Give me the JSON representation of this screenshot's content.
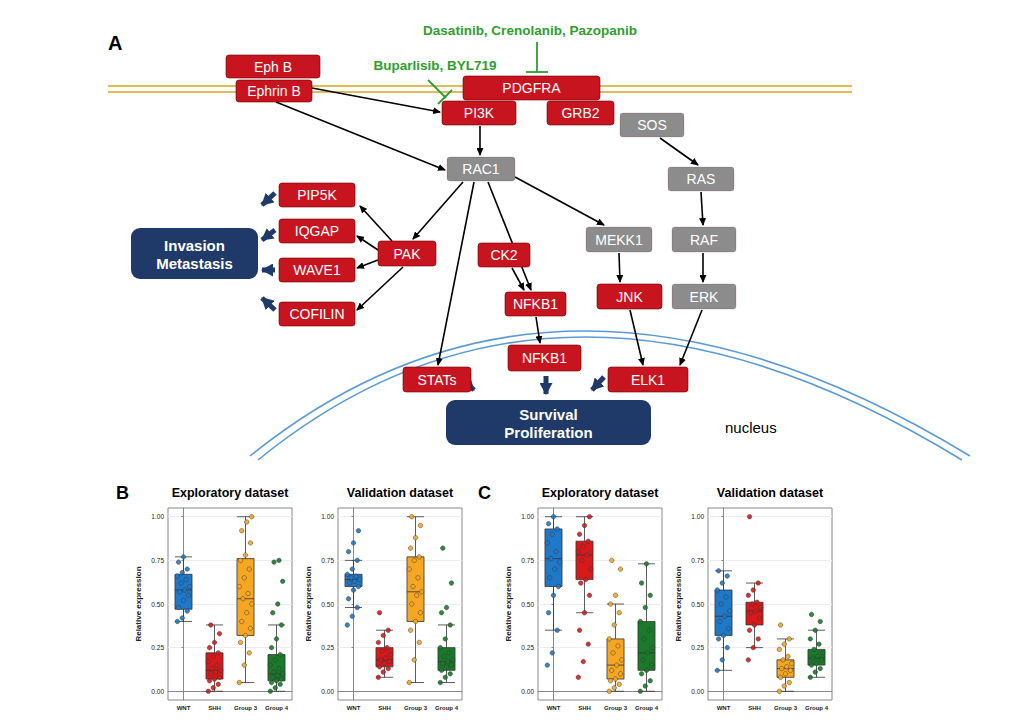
{
  "panel_labels": [
    "A",
    "B",
    "C"
  ],
  "diagram": {
    "colors": {
      "protein": "#c8141e",
      "other": "#8c8c8c",
      "outcome": "#1f3a68",
      "inhibitor": "#2e9e2e",
      "membrane": "#d9a520",
      "nucleus": "#5b9bd5"
    },
    "nodes": [
      {
        "label": "Eph B",
        "kind": "protein"
      },
      {
        "label": "Ephrin B",
        "kind": "protein"
      },
      {
        "label": "PDGFRA",
        "kind": "protein"
      },
      {
        "label": "PI3K",
        "kind": "protein"
      },
      {
        "label": "GRB2",
        "kind": "protein"
      },
      {
        "label": "SOS",
        "kind": "other"
      },
      {
        "label": "RAC1",
        "kind": "other"
      },
      {
        "label": "RAS",
        "kind": "other"
      },
      {
        "label": "PIP5K",
        "kind": "protein"
      },
      {
        "label": "IQGAP",
        "kind": "protein"
      },
      {
        "label": "PAK",
        "kind": "protein"
      },
      {
        "label": "WAVE1",
        "kind": "protein"
      },
      {
        "label": "COFILIN",
        "kind": "protein"
      },
      {
        "label": "CK2",
        "kind": "protein"
      },
      {
        "label": "MEKK1",
        "kind": "other"
      },
      {
        "label": "RAF",
        "kind": "other"
      },
      {
        "label": "NFKB1",
        "kind": "protein"
      },
      {
        "label": "JNK",
        "kind": "protein"
      },
      {
        "label": "ERK",
        "kind": "other"
      },
      {
        "label": "NFKB1",
        "kind": "protein"
      },
      {
        "label": "STATs",
        "kind": "protein"
      },
      {
        "label": "ELK1",
        "kind": "protein"
      }
    ],
    "outcomes": [
      [
        "Invasion",
        "Metastasis"
      ],
      [
        "Survival",
        "Proliferation"
      ]
    ],
    "inhibitors": [
      "Dasatinib, Crenolanib, Pazopanib",
      "Buparlisib, BYL719"
    ],
    "compartment_label": "nucleus"
  },
  "chart_data": [
    {
      "type": "boxplot",
      "title": "Exploratory dataset",
      "ylabel": "Relative expression",
      "categories": [
        "WNT",
        "SHH",
        "Group 3",
        "Group 4"
      ],
      "colors": [
        "#1f78c8",
        "#d7191c",
        "#f5a623",
        "#1a7a2a"
      ],
      "ylim": [
        -0.05,
        1.05
      ],
      "yticks": [
        {
          "value": 0,
          "label": "0.00"
        },
        {
          "value": 0.25,
          "label": "0.25"
        },
        {
          "value": 0.5,
          "label": "0.50"
        },
        {
          "value": 0.75,
          "label": "0.75"
        },
        {
          "value": 1,
          "label": "1.00"
        }
      ],
      "grid": true,
      "boxes": [
        [
          0.4,
          0.47,
          0.58,
          0.67,
          0.77
        ],
        [
          0.0,
          0.07,
          0.12,
          0.22,
          0.38
        ],
        [
          0.05,
          0.32,
          0.53,
          0.76,
          1.0
        ],
        [
          0.0,
          0.06,
          0.1,
          0.21,
          0.38
        ]
      ],
      "points": [
        [
          0.4,
          0.42,
          0.46,
          0.48,
          0.52,
          0.55,
          0.57,
          0.58,
          0.6,
          0.62,
          0.64,
          0.66,
          0.68,
          0.7,
          0.74,
          0.77
        ],
        [
          0.0,
          0.02,
          0.04,
          0.06,
          0.07,
          0.08,
          0.1,
          0.11,
          0.12,
          0.13,
          0.15,
          0.17,
          0.2,
          0.22,
          0.25,
          0.28,
          0.33,
          0.38
        ],
        [
          0.05,
          0.15,
          0.22,
          0.28,
          0.32,
          0.36,
          0.4,
          0.45,
          0.5,
          0.53,
          0.56,
          0.6,
          0.65,
          0.7,
          0.75,
          0.78,
          0.85,
          0.92,
          0.97,
          1.0
        ],
        [
          0.0,
          0.02,
          0.04,
          0.05,
          0.06,
          0.07,
          0.08,
          0.09,
          0.1,
          0.11,
          0.13,
          0.15,
          0.18,
          0.21,
          0.25,
          0.3,
          0.38,
          0.45,
          0.5,
          0.63,
          0.74,
          0.75
        ]
      ]
    },
    {
      "type": "boxplot",
      "title": "Validation dataset",
      "ylabel": "Relative expression",
      "categories": [
        "WNT",
        "SHH",
        "Group 3",
        "Group 4"
      ],
      "colors": [
        "#1f78c8",
        "#d7191c",
        "#f5a623",
        "#1a7a2a"
      ],
      "ylim": [
        -0.05,
        1.05
      ],
      "yticks": [
        {
          "value": 0,
          "label": "0.00"
        },
        {
          "value": 0.25,
          "label": "0.25"
        },
        {
          "value": 0.5,
          "label": "0.50"
        },
        {
          "value": 0.75,
          "label": "0.75"
        },
        {
          "value": 1,
          "label": "1.00"
        }
      ],
      "grid": true,
      "boxes": [
        [
          0.48,
          0.6,
          0.64,
          0.67,
          0.75
        ],
        [
          0.08,
          0.14,
          0.18,
          0.25,
          0.35
        ],
        [
          0.05,
          0.4,
          0.57,
          0.77,
          1.0
        ],
        [
          0.05,
          0.12,
          0.17,
          0.25,
          0.38
        ]
      ],
      "points": [
        [
          0.38,
          0.43,
          0.48,
          0.53,
          0.58,
          0.6,
          0.62,
          0.63,
          0.64,
          0.65,
          0.66,
          0.67,
          0.7,
          0.75,
          0.8,
          0.85,
          0.92
        ],
        [
          0.08,
          0.11,
          0.13,
          0.14,
          0.16,
          0.17,
          0.18,
          0.19,
          0.21,
          0.23,
          0.25,
          0.28,
          0.32,
          0.35,
          0.45
        ],
        [
          0.05,
          0.18,
          0.28,
          0.35,
          0.4,
          0.45,
          0.5,
          0.55,
          0.57,
          0.6,
          0.65,
          0.7,
          0.75,
          0.77,
          0.82,
          0.88,
          0.95,
          1.0
        ],
        [
          0.05,
          0.08,
          0.1,
          0.12,
          0.14,
          0.15,
          0.16,
          0.17,
          0.18,
          0.2,
          0.22,
          0.25,
          0.3,
          0.38,
          0.45,
          0.48,
          0.62,
          0.82
        ]
      ]
    },
    {
      "type": "boxplot",
      "title": "Exploratory dataset",
      "ylabel": "Relative expression",
      "categories": [
        "WNT",
        "SHH",
        "Group 3",
        "Group 4"
      ],
      "colors": [
        "#1f78c8",
        "#d7191c",
        "#f5a623",
        "#1a7a2a"
      ],
      "ylim": [
        -0.05,
        1.05
      ],
      "yticks": [
        {
          "value": 0,
          "label": "0.00"
        },
        {
          "value": 0.25,
          "label": "0.25"
        },
        {
          "value": 0.5,
          "label": "0.50"
        },
        {
          "value": 0.75,
          "label": "0.75"
        },
        {
          "value": 1,
          "label": "1.00"
        }
      ],
      "grid": true,
      "boxes": [
        [
          0.35,
          0.6,
          0.76,
          0.93,
          1.0
        ],
        [
          0.45,
          0.64,
          0.78,
          0.86,
          1.0
        ],
        [
          0.0,
          0.07,
          0.15,
          0.3,
          0.5
        ],
        [
          0.0,
          0.12,
          0.22,
          0.4,
          0.73
        ]
      ],
      "points": [
        [
          0.15,
          0.22,
          0.35,
          0.45,
          0.55,
          0.6,
          0.65,
          0.7,
          0.74,
          0.76,
          0.8,
          0.85,
          0.9,
          0.93,
          0.96,
          1.0
        ],
        [
          0.08,
          0.17,
          0.27,
          0.35,
          0.45,
          0.55,
          0.62,
          0.64,
          0.7,
          0.75,
          0.78,
          0.8,
          0.83,
          0.86,
          0.9,
          0.95,
          1.0
        ],
        [
          0.0,
          0.02,
          0.04,
          0.06,
          0.07,
          0.1,
          0.12,
          0.15,
          0.18,
          0.22,
          0.26,
          0.3,
          0.38,
          0.45,
          0.5,
          0.55,
          0.7,
          0.75
        ],
        [
          0.0,
          0.03,
          0.06,
          0.1,
          0.12,
          0.15,
          0.18,
          0.22,
          0.25,
          0.3,
          0.35,
          0.4,
          0.48,
          0.55,
          0.62,
          0.73
        ]
      ]
    },
    {
      "type": "boxplot",
      "title": "Validation dataset",
      "ylabel": "Relative expression",
      "categories": [
        "WNT",
        "SHH",
        "Group 3",
        "Group 4"
      ],
      "colors": [
        "#1f78c8",
        "#d7191c",
        "#f5a623",
        "#1a7a2a"
      ],
      "ylim": [
        -0.05,
        1.05
      ],
      "yticks": [
        {
          "value": 0,
          "label": "0.00"
        },
        {
          "value": 0.25,
          "label": "0.25"
        },
        {
          "value": 0.5,
          "label": "0.50"
        },
        {
          "value": 0.75,
          "label": "0.75"
        },
        {
          "value": 1,
          "label": "1.00"
        }
      ],
      "grid": true,
      "boxes": [
        [
          0.12,
          0.32,
          0.43,
          0.58,
          0.69
        ],
        [
          0.25,
          0.38,
          0.46,
          0.51,
          0.62
        ],
        [
          0.0,
          0.08,
          0.13,
          0.18,
          0.3
        ],
        [
          0.08,
          0.15,
          0.19,
          0.24,
          0.35
        ]
      ],
      "points": [
        [
          0.12,
          0.18,
          0.25,
          0.3,
          0.32,
          0.36,
          0.4,
          0.43,
          0.46,
          0.5,
          0.54,
          0.58,
          0.62,
          0.66,
          0.69
        ],
        [
          0.18,
          0.25,
          0.3,
          0.35,
          0.38,
          0.42,
          0.45,
          0.46,
          0.48,
          0.5,
          0.51,
          0.55,
          0.58,
          0.62,
          1.0
        ],
        [
          0.0,
          0.03,
          0.05,
          0.08,
          0.1,
          0.12,
          0.13,
          0.14,
          0.16,
          0.18,
          0.2,
          0.24,
          0.27,
          0.3,
          0.38
        ],
        [
          0.08,
          0.11,
          0.13,
          0.15,
          0.16,
          0.18,
          0.19,
          0.2,
          0.22,
          0.24,
          0.27,
          0.3,
          0.35,
          0.4,
          0.44
        ]
      ]
    }
  ]
}
